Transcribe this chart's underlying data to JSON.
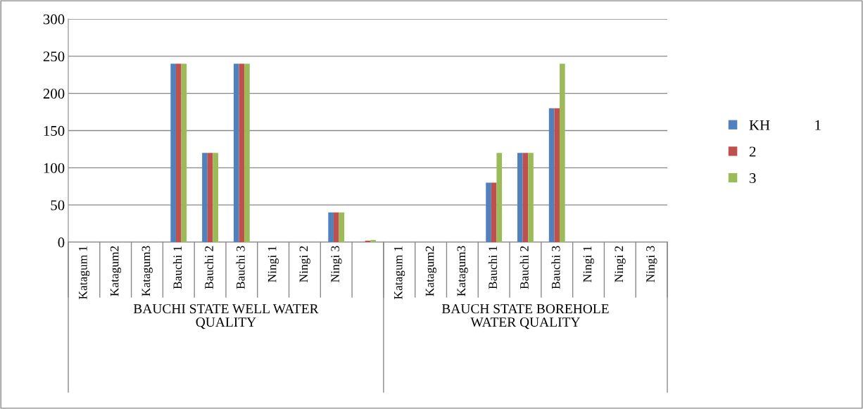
{
  "chart_data": {
    "type": "bar",
    "categories": [
      "Katagum 1",
      "Katagum2",
      "Katagum3",
      "Bauchi 1",
      "Bauchi 2",
      "Bauchi 3",
      "Ningi 1",
      "Ningi 2",
      "Ningi 3",
      null,
      "Katagum 1",
      "Katagum2",
      "Katagum3",
      "Bauchi 1",
      "Bauchi 2",
      "Bauchi 3",
      "Ningi 1",
      "Ningi 2",
      "Ningi 3"
    ],
    "series": [
      {
        "name": "KH            1",
        "color": "#4f81bd",
        "values": [
          0,
          0,
          0,
          240,
          120,
          240,
          0,
          0,
          40,
          null,
          0,
          0,
          0,
          80,
          120,
          180,
          0,
          0,
          0
        ]
      },
      {
        "name": "2",
        "color": "#c0504d",
        "values": [
          0,
          0,
          0,
          240,
          120,
          240,
          0,
          0,
          40,
          2,
          0,
          0,
          0,
          80,
          120,
          180,
          0,
          0,
          0
        ]
      },
      {
        "name": "3",
        "color": "#9bbb59",
        "values": [
          0,
          0,
          0,
          240,
          120,
          240,
          0,
          0,
          40,
          3,
          0,
          0,
          0,
          120,
          120,
          240,
          0,
          0,
          0
        ]
      }
    ],
    "annotations": [
      "BAUCHI STATE WELL WATER\nQUALITY",
      "BAUCH STATE BOREHOLE\nWATER QUALITY"
    ],
    "ylim": [
      0,
      300
    ],
    "yticks": [
      0,
      50,
      100,
      150,
      200,
      250,
      300
    ],
    "grid": "y",
    "legend": "right"
  }
}
